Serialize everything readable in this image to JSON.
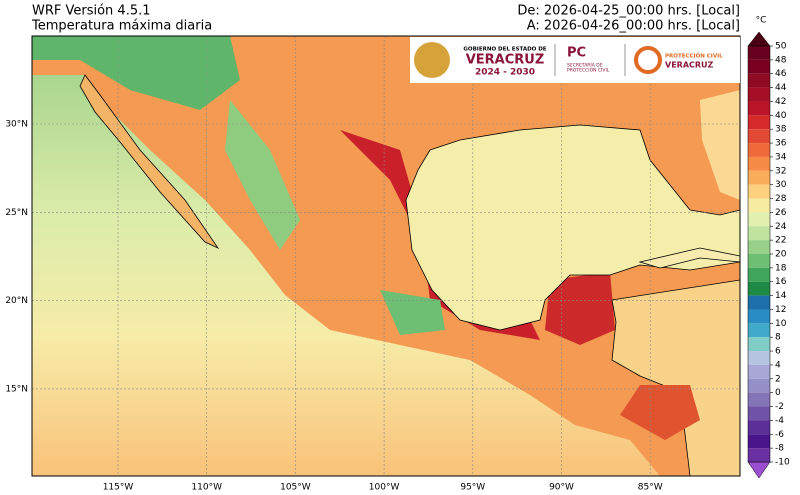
{
  "header": {
    "title": "WRF Versión 4.5.1",
    "subtitle": "Temperatura máxima diaria",
    "from": "De: 2026-04-25_00:00 hrs. [Local]",
    "to": "A: 2026-04-26_00:00 hrs. [Local]"
  },
  "map": {
    "lon_labels": [
      "115°W",
      "110°W",
      "105°W",
      "100°W",
      "95°W",
      "90°W",
      "85°W"
    ],
    "lat_labels": [
      "30°N",
      "25°N",
      "20°N",
      "15°N"
    ]
  },
  "logos": {
    "gov_line": "GOBIERNO DEL ESTADO DE",
    "gov_state": "VERACRUZ",
    "gov_years": "2024 - 2030",
    "pc": "PC",
    "pc_line1": "SECRETARÍA DE",
    "pc_line2": "PROTECCIÓN CIVIL",
    "pcv_line": "PROTECCIÓN CIVIL",
    "pcv_state": "VERACRUZ"
  },
  "colorbar": {
    "unit": "°C",
    "levels": [
      50,
      48,
      46,
      44,
      42,
      40,
      38,
      36,
      34,
      32,
      30,
      28,
      26,
      24,
      22,
      20,
      18,
      16,
      14,
      12,
      10,
      8,
      6,
      4,
      2,
      0,
      -2,
      -4,
      -6,
      -8,
      -10
    ],
    "colors": [
      "#67001f",
      "#7a0022",
      "#8f0a23",
      "#a50f25",
      "#bb1529",
      "#d42a2a",
      "#e34a33",
      "#ee6a3a",
      "#f58b45",
      "#f9ad5b",
      "#fcd07e",
      "#f7eba2",
      "#e2f0b0",
      "#c1e3a0",
      "#99d18a",
      "#6dbf74",
      "#3fa55a",
      "#1f8a45",
      "#1c6fa8",
      "#2a8cc4",
      "#40aacb",
      "#7fcdc6",
      "#b6c6e2",
      "#a9a7d5",
      "#9590c8",
      "#8474b8",
      "#7052a8",
      "#5a2f98",
      "#48168a",
      "#6a2fa0"
    ],
    "over_color": "#4a0015",
    "under_color": "#9b4fd0"
  }
}
